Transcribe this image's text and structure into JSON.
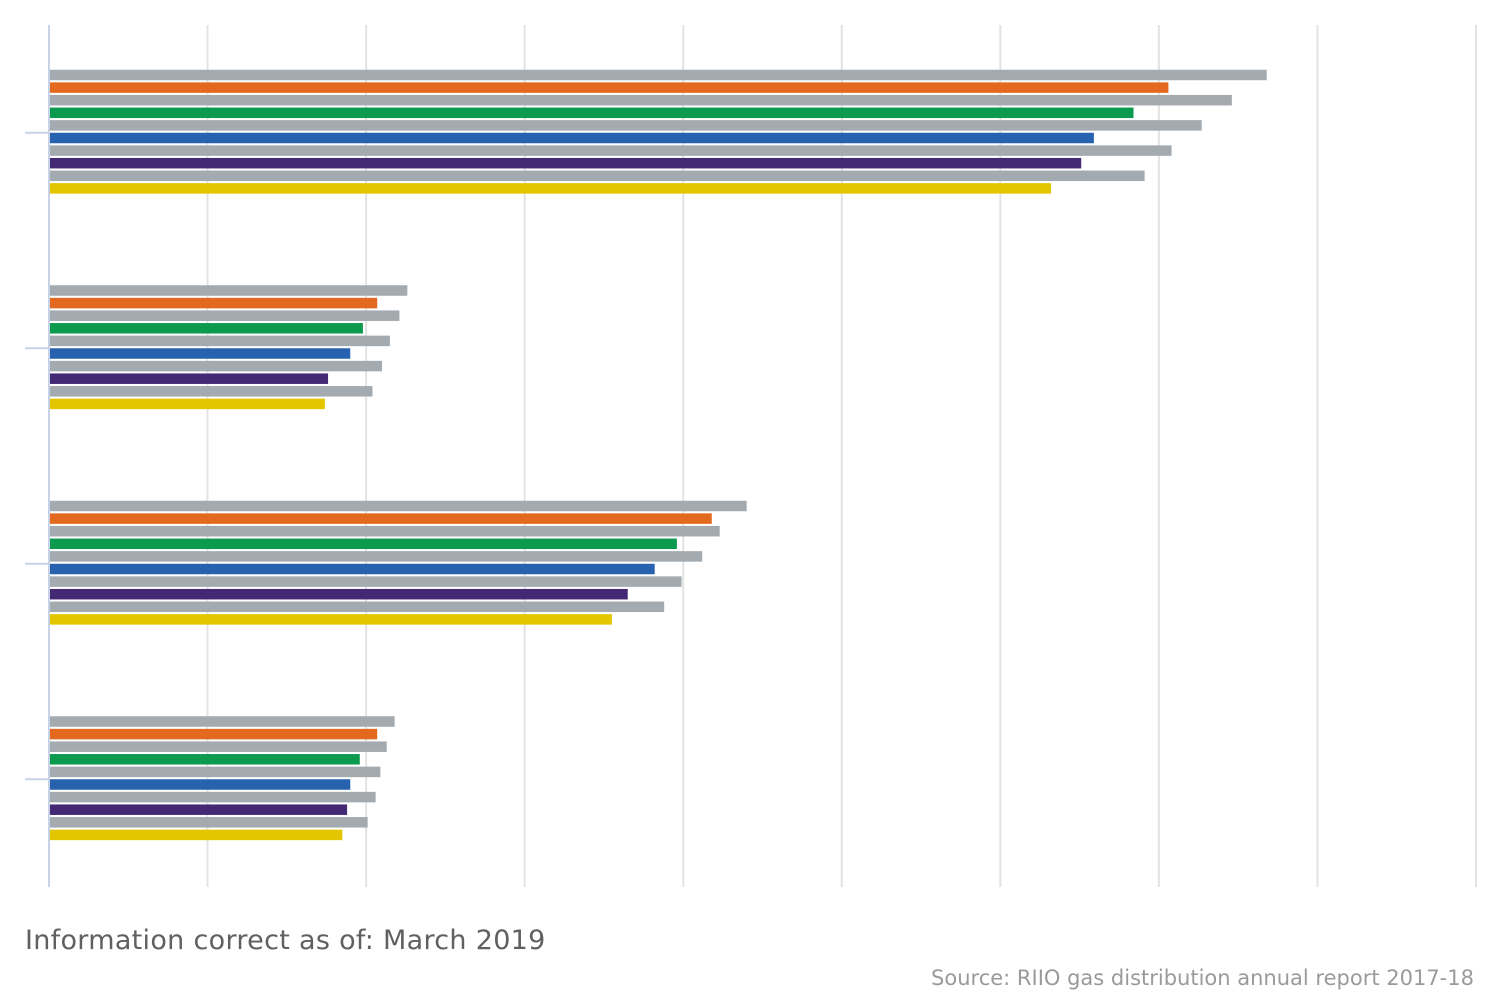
{
  "footnote": "Information correct as of: March 2019",
  "source": "Source: RIIO gas distribution annual report 2017-18",
  "chart_data": {
    "type": "bar",
    "orientation": "horizontal",
    "title": "",
    "xlabel": "",
    "ylabel": "",
    "xlim": [
      0,
      9
    ],
    "grid": true,
    "legend": "none",
    "categories": [
      "",
      "",
      "",
      ""
    ],
    "series": [
      {
        "color": "#a3aab0",
        "values": [
          7.68,
          2.26,
          4.4,
          2.18
        ]
      },
      {
        "color": "#e2691e",
        "values": [
          7.06,
          2.07,
          4.18,
          2.07
        ]
      },
      {
        "color": "#a3aab0",
        "values": [
          7.46,
          2.21,
          4.23,
          2.13
        ]
      },
      {
        "color": "#0c9a4f",
        "values": [
          6.84,
          1.98,
          3.96,
          1.96
        ]
      },
      {
        "color": "#a3aab0",
        "values": [
          7.27,
          2.15,
          4.12,
          2.09
        ]
      },
      {
        "color": "#2662ad",
        "values": [
          6.59,
          1.9,
          3.82,
          1.9
        ]
      },
      {
        "color": "#a3aab0",
        "values": [
          7.08,
          2.1,
          3.99,
          2.06
        ]
      },
      {
        "color": "#432973",
        "values": [
          6.51,
          1.76,
          3.65,
          1.88
        ]
      },
      {
        "color": "#a3aab0",
        "values": [
          6.91,
          2.04,
          3.88,
          2.01
        ]
      },
      {
        "color": "#e3c600",
        "values": [
          6.32,
          1.74,
          3.55,
          1.85
        ]
      }
    ]
  }
}
